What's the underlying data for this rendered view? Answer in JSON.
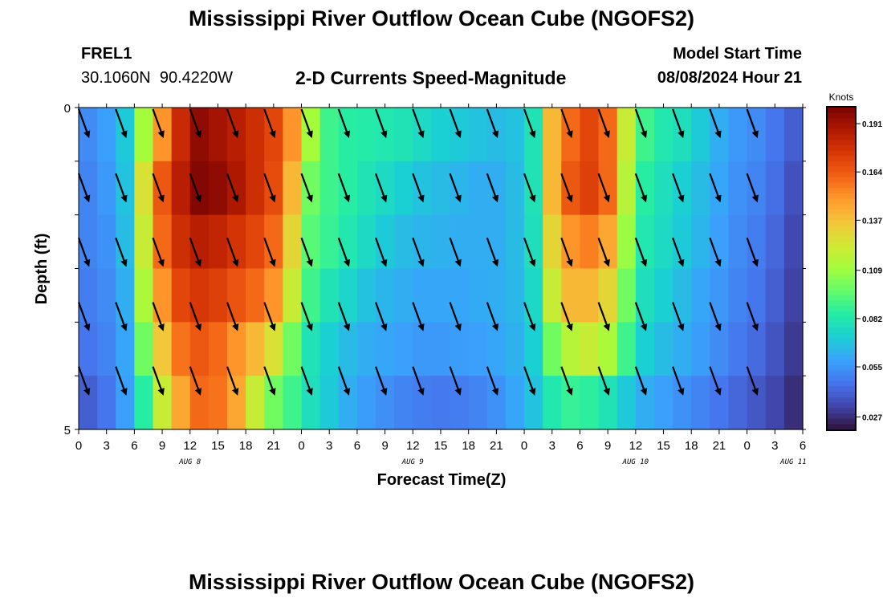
{
  "header": {
    "title": "Mississippi River Outflow Ocean Cube (NGOFS2)",
    "station_id": "FREL1",
    "station_coords": "30.1060N  90.4220W",
    "plot_title": "2-D Currents Speed-Magnitude",
    "start_time_label": "Model Start Time",
    "start_time_value": "08/08/2024 Hour 21"
  },
  "footer": {
    "title": "Mississippi River Outflow Ocean Cube (NGOFS2)"
  },
  "colors": {
    "colormap": [
      "#30123b",
      "#4145ab",
      "#4675ed",
      "#39a2fc",
      "#1bcfd4",
      "#24eca6",
      "#61fc6c",
      "#a4fc3b",
      "#d1e834",
      "#f3c63a",
      "#fe9b2d",
      "#f36315",
      "#d93806",
      "#b11901",
      "#7a0402"
    ],
    "arrow": "#000000"
  },
  "chart_data": {
    "type": "heatmap",
    "title": "2-D Currents Speed-Magnitude",
    "xlabel": "Forecast Time(Z)",
    "ylabel": "Depth (ft)",
    "y_ticks": [
      "0",
      "5"
    ],
    "ylim": [
      0,
      5
    ],
    "x_ticks": [
      "0",
      "3",
      "6",
      "9",
      "12",
      "15",
      "18",
      "21",
      "0",
      "3",
      "6",
      "9",
      "12",
      "15",
      "18",
      "21",
      "0",
      "3",
      "6",
      "9",
      "12",
      "15",
      "18",
      "21",
      "0",
      "3",
      "6"
    ],
    "date_labels": [
      "AUG 8",
      "AUG 9",
      "AUG 10",
      "AUG 11"
    ],
    "colorbar": {
      "label": "Knots",
      "ticks": [
        "0.191",
        "0.164",
        "0.137",
        "0.109",
        "0.082",
        "0.055",
        "0.027"
      ],
      "range": [
        0.02,
        0.2
      ]
    },
    "depth_layers": 5,
    "hours": [
      0,
      2,
      4,
      6,
      8,
      10,
      12,
      14,
      16,
      18,
      20,
      22,
      24,
      26,
      28,
      30,
      32,
      34,
      36,
      38,
      40,
      42,
      44,
      46,
      48,
      50,
      52,
      54,
      56,
      58,
      60,
      62,
      64,
      66,
      68,
      70,
      72,
      74,
      76,
      78
    ],
    "speed_knots": [
      [
        0.052,
        0.058,
        0.07,
        0.11,
        0.15,
        0.18,
        0.195,
        0.19,
        0.185,
        0.178,
        0.17,
        0.15,
        0.11,
        0.09,
        0.085,
        0.084,
        0.082,
        0.08,
        0.076,
        0.072,
        0.07,
        0.068,
        0.066,
        0.068,
        0.08,
        0.14,
        0.16,
        0.17,
        0.16,
        0.12,
        0.09,
        0.082,
        0.078,
        0.07,
        0.062,
        0.056,
        0.052,
        0.046,
        0.04,
        0.03
      ],
      [
        0.05,
        0.056,
        0.068,
        0.125,
        0.165,
        0.185,
        0.198,
        0.195,
        0.188,
        0.178,
        0.168,
        0.14,
        0.1,
        0.09,
        0.085,
        0.08,
        0.076,
        0.072,
        0.068,
        0.066,
        0.064,
        0.062,
        0.062,
        0.066,
        0.08,
        0.14,
        0.165,
        0.172,
        0.16,
        0.115,
        0.085,
        0.078,
        0.072,
        0.066,
        0.06,
        0.054,
        0.05,
        0.044,
        0.036,
        0.028
      ],
      [
        0.05,
        0.054,
        0.066,
        0.12,
        0.16,
        0.178,
        0.185,
        0.182,
        0.176,
        0.17,
        0.16,
        0.13,
        0.095,
        0.088,
        0.082,
        0.076,
        0.07,
        0.066,
        0.064,
        0.063,
        0.062,
        0.062,
        0.062,
        0.066,
        0.078,
        0.13,
        0.15,
        0.155,
        0.145,
        0.108,
        0.082,
        0.076,
        0.07,
        0.064,
        0.058,
        0.052,
        0.048,
        0.042,
        0.034,
        0.026
      ],
      [
        0.048,
        0.052,
        0.062,
        0.112,
        0.15,
        0.17,
        0.175,
        0.172,
        0.166,
        0.16,
        0.15,
        0.12,
        0.09,
        0.08,
        0.074,
        0.068,
        0.064,
        0.062,
        0.06,
        0.06,
        0.06,
        0.061,
        0.062,
        0.065,
        0.075,
        0.12,
        0.14,
        0.14,
        0.13,
        0.1,
        0.078,
        0.072,
        0.066,
        0.06,
        0.055,
        0.05,
        0.046,
        0.04,
        0.032,
        0.024
      ],
      [
        0.046,
        0.05,
        0.06,
        0.1,
        0.135,
        0.158,
        0.165,
        0.16,
        0.15,
        0.14,
        0.125,
        0.1,
        0.08,
        0.072,
        0.066,
        0.062,
        0.06,
        0.058,
        0.056,
        0.056,
        0.057,
        0.058,
        0.06,
        0.063,
        0.072,
        0.1,
        0.115,
        0.12,
        0.112,
        0.09,
        0.072,
        0.066,
        0.062,
        0.057,
        0.052,
        0.047,
        0.043,
        0.037,
        0.03,
        0.022
      ]
    ],
    "extra_layer_bottom": [
      0.04,
      0.046,
      0.058,
      0.085,
      0.12,
      0.145,
      0.16,
      0.158,
      0.145,
      0.12,
      0.1,
      0.09,
      0.078,
      0.07,
      0.062,
      0.057,
      0.053,
      0.05,
      0.048,
      0.047,
      0.048,
      0.05,
      0.054,
      0.06,
      0.068,
      0.082,
      0.088,
      0.086,
      0.08,
      0.07,
      0.062,
      0.058,
      0.054,
      0.05,
      0.046,
      0.042,
      0.038,
      0.033,
      0.027,
      0.02
    ],
    "arrow_hours": [
      0,
      4,
      8,
      12,
      16,
      20,
      24,
      28,
      32,
      36,
      40,
      44,
      48,
      52,
      56,
      60,
      64,
      68,
      72
    ],
    "arrow_rows": 5,
    "arrow_direction_deg_from_north": 160
  }
}
